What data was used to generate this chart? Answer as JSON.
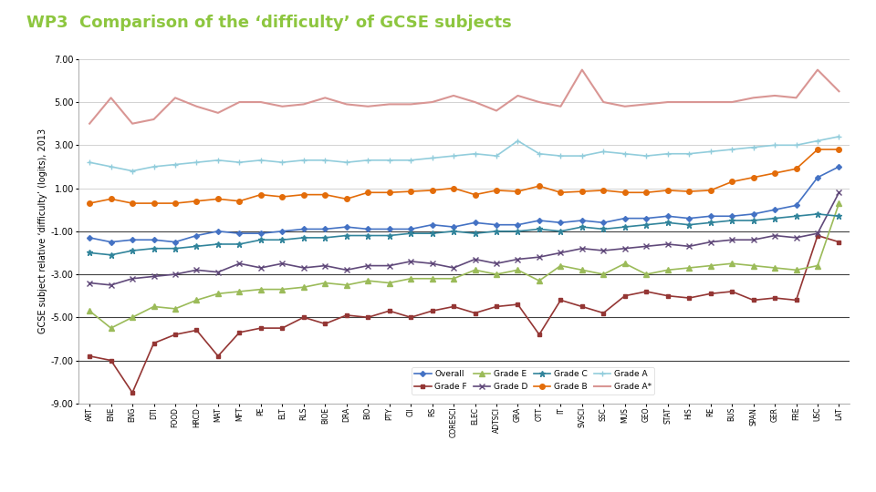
{
  "title": "WP3  Comparison of the ‘difficulty’ of GCSE subjects",
  "title_color": "#8DC63F",
  "ylabel": "GCSE subject relative ‘difficulty’ (logits), 2013",
  "ylim": [
    -9.0,
    7.0
  ],
  "yticks": [
    -9.0,
    -7.0,
    -5.0,
    -3.0,
    -1.0,
    1.0,
    3.0,
    5.0,
    7.0
  ],
  "background_color": "#ffffff",
  "categories": [
    "ART",
    "ENE",
    "ENG",
    "DTI",
    "FOOD",
    "HRCD",
    "MAT",
    "MFT",
    "PE",
    "ELT",
    "RLS",
    "BIOE",
    "DRA",
    "BIO",
    "PTY",
    "CII",
    "RS",
    "CORESCI",
    "ELEC",
    "ADTSCI",
    "GRA",
    "OTT",
    "IT",
    "SVSCI",
    "SSC",
    "MUS",
    "GEO",
    "STAT",
    "HIS",
    "RE",
    "BUS",
    "SPAN",
    "GER",
    "FRE",
    "USC",
    "LAT"
  ],
  "series": {
    "Overall": {
      "color": "#4472C4",
      "marker": "D",
      "marker_size": 3,
      "line_width": 1.2,
      "values": [
        -1.3,
        -1.5,
        -1.4,
        -1.4,
        -1.5,
        -1.2,
        -1.0,
        -1.1,
        -1.1,
        -1.0,
        -0.9,
        -0.9,
        -0.8,
        -0.9,
        -0.9,
        -0.9,
        -0.7,
        -0.8,
        -0.6,
        -0.7,
        -0.7,
        -0.5,
        -0.6,
        -0.5,
        -0.6,
        -0.4,
        -0.4,
        -0.3,
        -0.4,
        -0.3,
        -0.3,
        -0.2,
        0.0,
        0.2,
        1.5,
        2.0
      ]
    },
    "Grade F": {
      "color": "#943634",
      "marker": "s",
      "marker_size": 3,
      "line_width": 1.2,
      "values": [
        -6.8,
        -7.0,
        -8.5,
        -6.2,
        -5.8,
        -5.6,
        -6.8,
        -5.7,
        -5.5,
        -5.5,
        -5.0,
        -5.3,
        -4.9,
        -5.0,
        -4.7,
        -5.0,
        -4.7,
        -4.5,
        -4.8,
        -4.5,
        -4.4,
        -5.8,
        -4.2,
        -4.5,
        -4.8,
        -4.0,
        -3.8,
        -4.0,
        -4.1,
        -3.9,
        -3.8,
        -4.2,
        -4.1,
        -4.2,
        -1.2,
        -1.5
      ]
    },
    "Grade E": {
      "color": "#9BBB59",
      "marker": "^",
      "marker_size": 4,
      "line_width": 1.2,
      "values": [
        -4.7,
        -5.5,
        -5.0,
        -4.5,
        -4.6,
        -4.2,
        -3.9,
        -3.8,
        -3.7,
        -3.7,
        -3.6,
        -3.4,
        -3.5,
        -3.3,
        -3.4,
        -3.2,
        -3.2,
        -3.2,
        -2.8,
        -3.0,
        -2.8,
        -3.3,
        -2.6,
        -2.8,
        -3.0,
        -2.5,
        -3.0,
        -2.8,
        -2.7,
        -2.6,
        -2.5,
        -2.6,
        -2.7,
        -2.8,
        -2.6,
        0.3
      ]
    },
    "Grade D": {
      "color": "#60497A",
      "marker": "x",
      "marker_size": 4,
      "line_width": 1.2,
      "values": [
        -3.4,
        -3.5,
        -3.2,
        -3.1,
        -3.0,
        -2.8,
        -2.9,
        -2.5,
        -2.7,
        -2.5,
        -2.7,
        -2.6,
        -2.8,
        -2.6,
        -2.6,
        -2.4,
        -2.5,
        -2.7,
        -2.3,
        -2.5,
        -2.3,
        -2.2,
        -2.0,
        -1.8,
        -1.9,
        -1.8,
        -1.7,
        -1.6,
        -1.7,
        -1.5,
        -1.4,
        -1.4,
        -1.2,
        -1.3,
        -1.1,
        0.8
      ]
    },
    "Grade C": {
      "color": "#31849B",
      "marker": "*",
      "marker_size": 5,
      "line_width": 1.2,
      "values": [
        -2.0,
        -2.1,
        -1.9,
        -1.8,
        -1.8,
        -1.7,
        -1.6,
        -1.6,
        -1.4,
        -1.4,
        -1.3,
        -1.3,
        -1.2,
        -1.2,
        -1.2,
        -1.1,
        -1.1,
        -1.0,
        -1.1,
        -1.0,
        -1.0,
        -0.9,
        -1.0,
        -0.8,
        -0.9,
        -0.8,
        -0.7,
        -0.6,
        -0.7,
        -0.6,
        -0.5,
        -0.5,
        -0.4,
        -0.3,
        -0.2,
        -0.3
      ]
    },
    "Grade B": {
      "color": "#E36C09",
      "marker": "o",
      "marker_size": 4,
      "line_width": 1.2,
      "values": [
        0.3,
        0.5,
        0.3,
        0.3,
        0.3,
        0.4,
        0.5,
        0.4,
        0.7,
        0.6,
        0.7,
        0.7,
        0.5,
        0.8,
        0.8,
        0.85,
        0.9,
        1.0,
        0.7,
        0.9,
        0.85,
        1.1,
        0.8,
        0.85,
        0.9,
        0.8,
        0.8,
        0.9,
        0.85,
        0.9,
        1.3,
        1.5,
        1.7,
        1.9,
        2.8,
        2.8
      ]
    },
    "Grade A": {
      "color": "#92CDDC",
      "marker": "+",
      "marker_size": 5,
      "line_width": 1.2,
      "values": [
        2.2,
        2.0,
        1.8,
        2.0,
        2.1,
        2.2,
        2.3,
        2.2,
        2.3,
        2.2,
        2.3,
        2.3,
        2.2,
        2.3,
        2.3,
        2.3,
        2.4,
        2.5,
        2.6,
        2.5,
        3.2,
        2.6,
        2.5,
        2.5,
        2.7,
        2.6,
        2.5,
        2.6,
        2.6,
        2.7,
        2.8,
        2.9,
        3.0,
        3.0,
        3.2,
        3.4
      ]
    },
    "Grade A*": {
      "color": "#D99694",
      "marker": "none",
      "marker_size": 0,
      "line_width": 1.5,
      "values": [
        4.0,
        5.2,
        4.0,
        4.2,
        5.2,
        4.8,
        4.5,
        5.0,
        5.0,
        4.8,
        4.9,
        5.2,
        4.9,
        4.8,
        4.9,
        4.9,
        5.0,
        5.3,
        5.0,
        4.6,
        5.3,
        5.0,
        4.8,
        6.5,
        5.0,
        4.8,
        4.9,
        5.0,
        5.0,
        5.0,
        5.0,
        5.2,
        5.3,
        5.2,
        6.5,
        5.5
      ]
    }
  },
  "legend_order": [
    "Overall",
    "Grade F",
    "Grade E",
    "Grade D",
    "Grade C",
    "Grade B",
    "Grade A",
    "Grade A*"
  ],
  "hlines": [
    -1.0,
    -3.0,
    -5.0,
    -7.0
  ],
  "green_bar_color": "#92D050",
  "ofqual_color": "#ffffff"
}
